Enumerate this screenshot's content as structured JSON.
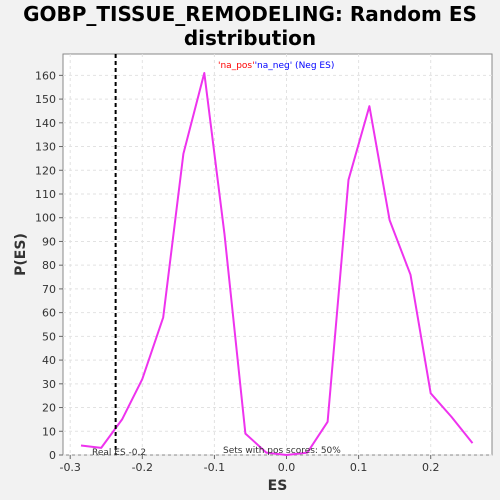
{
  "chart_data": {
    "type": "line",
    "title_line1": "GOBP_TISSUE_REMODELING: Random ES",
    "title_line2": "distribution",
    "xlabel": "ES",
    "ylabel": "P(ES)",
    "xlim": [
      -0.31,
      0.285
    ],
    "ylim": [
      0,
      169
    ],
    "x_ticks": [
      -0.3,
      -0.2,
      -0.1,
      0.0,
      0.1,
      0.2
    ],
    "x_tick_labels": [
      "-0.3",
      "-0.2",
      "-0.1",
      "0.0",
      "0.1",
      "0.2"
    ],
    "y_ticks": [
      0,
      10,
      20,
      30,
      40,
      50,
      60,
      70,
      80,
      90,
      100,
      110,
      120,
      130,
      140,
      150,
      160
    ],
    "grid": true,
    "series": [
      {
        "color": "#ee33ee",
        "x": [
          -0.285,
          -0.257,
          -0.228,
          -0.2,
          -0.171,
          -0.143,
          -0.114,
          -0.086,
          -0.057,
          -0.028,
          0.0,
          0.029,
          0.057,
          0.086,
          0.115,
          0.143,
          0.172,
          0.2,
          0.229,
          0.258
        ],
        "y": [
          4,
          3,
          15,
          32,
          58,
          127,
          161,
          93,
          9,
          1,
          0,
          1,
          14,
          116,
          147,
          99,
          76,
          26,
          16,
          5
        ]
      }
    ],
    "real_es_x": -0.237,
    "real_es_label": "Real ES -0.2",
    "pos_scores_label": "Sets with pos scores: 50%",
    "legend_pos_label": "'na_pos'",
    "legend_neg_label": "'na_neg' (Neg ES)",
    "legend_pos_color": "#ff0000",
    "legend_neg_color": "#0000ff"
  }
}
